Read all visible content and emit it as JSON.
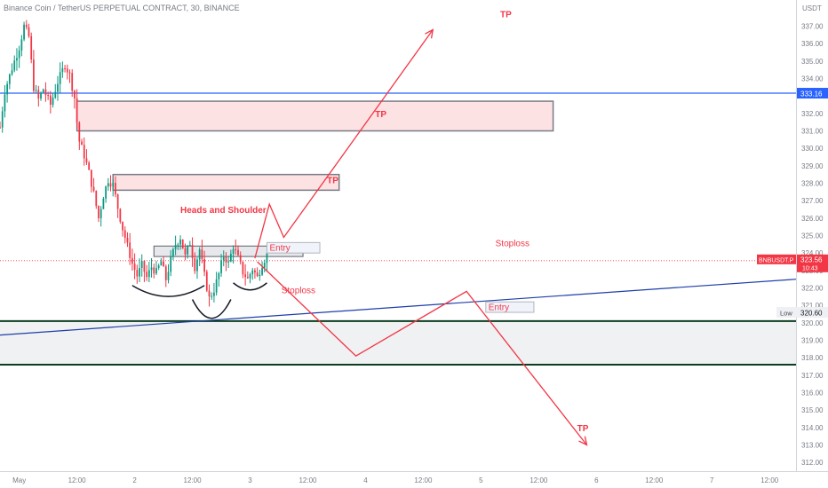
{
  "header": {
    "title": "Binance Coin / TetherUS PERPETUAL CONTRACT, 30, BINANCE"
  },
  "chart_data": {
    "type": "candlestick",
    "symbol": "BNBUSDT.P",
    "currency": "USDT",
    "current_price": "323.56",
    "countdown": "10:43",
    "ylim": [
      311.5,
      338.5
    ],
    "y_ticks": [
      312,
      313,
      314,
      315,
      316,
      317,
      318,
      319,
      320,
      321,
      322,
      323,
      324,
      325,
      326,
      327,
      328,
      329,
      330,
      331,
      332,
      333,
      334,
      335,
      336,
      337
    ],
    "y_tick_labels": [
      "312.00",
      "313.00",
      "314.00",
      "315.00",
      "316.00",
      "317.00",
      "318.00",
      "319.00",
      "320.00",
      "321.00",
      "322.00",
      "323.00",
      "324.00",
      "325.00",
      "326.00",
      "327.00",
      "328.00",
      "329.00",
      "330.00",
      "331.00",
      "332.00",
      "333.00",
      "334.00",
      "335.00",
      "336.00",
      "337.00"
    ],
    "x_ticks": [
      {
        "t": 0,
        "label": "May"
      },
      {
        "t": 24,
        "label": "12:00"
      },
      {
        "t": 48,
        "label": "2"
      },
      {
        "t": 72,
        "label": "12:00"
      },
      {
        "t": 96,
        "label": "3"
      },
      {
        "t": 120,
        "label": "12:00"
      },
      {
        "t": 144,
        "label": "4"
      },
      {
        "t": 168,
        "label": "12:00"
      },
      {
        "t": 192,
        "label": "5"
      },
      {
        "t": 216,
        "label": "12:00"
      },
      {
        "t": 240,
        "label": "6"
      },
      {
        "t": 264,
        "label": "12:00"
      },
      {
        "t": 288,
        "label": "7"
      },
      {
        "t": 312,
        "label": "12:00"
      }
    ],
    "x_range": [
      -8,
      323
    ],
    "price_path": [
      [
        -8,
        331.2
      ],
      [
        -6,
        333.3
      ],
      [
        -3,
        334.6
      ],
      [
        0,
        335.8
      ],
      [
        2,
        337.0
      ],
      [
        4,
        336.4
      ],
      [
        6,
        333.5
      ],
      [
        8,
        332.8
      ],
      [
        10,
        333.4
      ],
      [
        13,
        332.5
      ],
      [
        16,
        333.8
      ],
      [
        19,
        334.8
      ],
      [
        21,
        334.2
      ],
      [
        23,
        332.9
      ],
      [
        24,
        331.5
      ],
      [
        25,
        330.4
      ],
      [
        27,
        329.6
      ],
      [
        29,
        328.6
      ],
      [
        31,
        327.4
      ],
      [
        33,
        326.0
      ],
      [
        35,
        327.3
      ],
      [
        37,
        328.2
      ],
      [
        39,
        327.9
      ],
      [
        41,
        326.6
      ],
      [
        43,
        325.4
      ],
      [
        45,
        324.4
      ],
      [
        47,
        323.4
      ],
      [
        49,
        322.7
      ],
      [
        51,
        323.3
      ],
      [
        53,
        322.6
      ],
      [
        55,
        323.2
      ],
      [
        57,
        322.9
      ],
      [
        59,
        323.5
      ],
      [
        61,
        322.5
      ],
      [
        63,
        323.6
      ],
      [
        65,
        324.5
      ],
      [
        67,
        324.9
      ],
      [
        69,
        323.8
      ],
      [
        71,
        324.6
      ],
      [
        73,
        323.2
      ],
      [
        75,
        324.2
      ],
      [
        77,
        322.7
      ],
      [
        79,
        321.4
      ],
      [
        81,
        321.9
      ],
      [
        83,
        322.8
      ],
      [
        85,
        323.9
      ],
      [
        87,
        323.4
      ],
      [
        89,
        324.4
      ],
      [
        91,
        323.7
      ],
      [
        93,
        322.9
      ],
      [
        95,
        322.5
      ],
      [
        97,
        323.1
      ],
      [
        99,
        322.6
      ],
      [
        101,
        323.4
      ],
      [
        103,
        323.9
      ]
    ],
    "price_path_start": 0,
    "horizontal_lines": [
      {
        "price": 333.16,
        "label": "333.16",
        "color": "#2962ff"
      },
      {
        "price": 323.56,
        "label": "323.56",
        "color": "#f23645",
        "dotted": true
      }
    ],
    "low_marker": {
      "price": 320.6,
      "text": "Low",
      "value": "320.60"
    },
    "trendline": [
      [
        -8,
        319.3
      ],
      [
        323,
        322.5
      ]
    ],
    "tp_zones": [
      {
        "t0": 24,
        "t1": 222,
        "p0": 331.0,
        "p1": 332.7,
        "label": "TP"
      },
      {
        "t0": 39,
        "t1": 133,
        "p0": 327.6,
        "p1": 328.5,
        "label": "TP"
      }
    ],
    "neckline_zone": {
      "t0": 56,
      "t1": 118,
      "p0": 323.8,
      "p1": 324.4
    },
    "support_zone": {
      "p0": 317.6,
      "p1": 320.1
    },
    "bull_path": [
      [
        98,
        323.7
      ],
      [
        104,
        326.8
      ],
      [
        110,
        324.9
      ],
      [
        172,
        336.8
      ]
    ],
    "bear_path": [
      [
        99,
        323.5
      ],
      [
        140,
        318.1
      ],
      [
        186,
        321.8
      ],
      [
        236,
        313.0
      ]
    ],
    "annotations": [
      {
        "text": "Heads and Shoulder",
        "t": 67,
        "p": 326.3
      },
      {
        "text": "TP",
        "t": 200,
        "p": 337.5
      },
      {
        "text": "TP",
        "t": 148,
        "p": 331.8
      },
      {
        "text": "TP",
        "t": 128,
        "p": 328.0
      },
      {
        "text": "Stoploss",
        "t": 198,
        "p": 324.4
      },
      {
        "text": "Stoploss",
        "t": 109,
        "p": 321.7
      },
      {
        "text": "TP",
        "t": 232,
        "p": 313.8
      }
    ],
    "entry_boxes": [
      {
        "t0": 103,
        "t1": 125,
        "p0": 324.0,
        "p1": 324.6,
        "text": "Entry"
      },
      {
        "t0": 194,
        "t1": 214,
        "p0": 320.6,
        "p1": 321.2,
        "text": "Entry"
      }
    ],
    "shoulders": [
      {
        "t": 62,
        "p": 322.0,
        "rx": 15,
        "ry": 0.7
      },
      {
        "t": 80,
        "p": 321.1,
        "rx": 8,
        "ry": 1.2
      },
      {
        "t": 96,
        "p": 322.2,
        "rx": 7,
        "ry": 0.45
      }
    ]
  }
}
